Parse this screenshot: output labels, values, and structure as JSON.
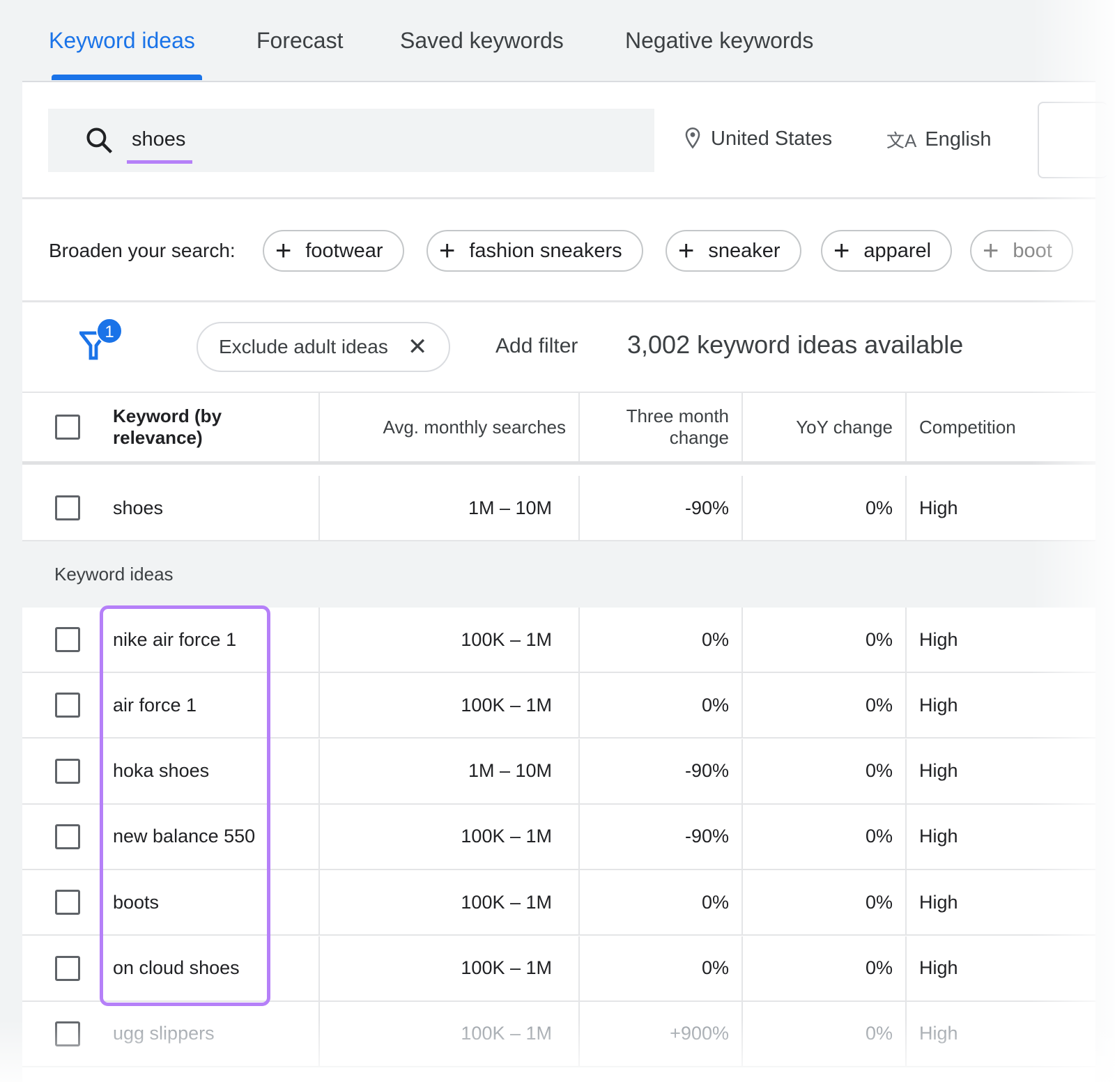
{
  "tabs": [
    "Keyword ideas",
    "Forecast",
    "Saved keywords",
    "Negative keywords"
  ],
  "search": {
    "value": "shoes",
    "location": "United States",
    "language": "English"
  },
  "broaden": {
    "label": "Broaden your search:",
    "chips": [
      "footwear",
      "fashion sneakers",
      "sneaker",
      "apparel",
      "boot"
    ]
  },
  "filter": {
    "badge": "1",
    "chip": "Exclude adult ideas",
    "add": "Add filter",
    "count": "3,002 keyword ideas available"
  },
  "table": {
    "headers": [
      "Keyword (by relevance)",
      "Avg. monthly searches",
      "Three month change",
      "YoY change",
      "Competition"
    ],
    "provided": {
      "keyword": "shoes",
      "avg": "1M – 10M",
      "three": "-90%",
      "yoy": "0%",
      "comp": "High"
    },
    "section_label": "Keyword ideas",
    "rows": [
      {
        "keyword": "nike air force 1",
        "avg": "100K – 1M",
        "three": "0%",
        "yoy": "0%",
        "comp": "High"
      },
      {
        "keyword": "air force 1",
        "avg": "100K – 1M",
        "three": "0%",
        "yoy": "0%",
        "comp": "High"
      },
      {
        "keyword": "hoka shoes",
        "avg": "1M – 10M",
        "three": "-90%",
        "yoy": "0%",
        "comp": "High"
      },
      {
        "keyword": "new balance 550",
        "avg": "100K – 1M",
        "three": "-90%",
        "yoy": "0%",
        "comp": "High"
      },
      {
        "keyword": "boots",
        "avg": "100K – 1M",
        "three": "0%",
        "yoy": "0%",
        "comp": "High"
      },
      {
        "keyword": "on cloud shoes",
        "avg": "100K – 1M",
        "three": "0%",
        "yoy": "0%",
        "comp": "High"
      },
      {
        "keyword": "ugg slippers",
        "avg": "100K – 1M",
        "three": "+900%",
        "yoy": "0%",
        "comp": "High"
      }
    ]
  },
  "colors": {
    "accent": "#1a73e8",
    "highlight": "#b580f8"
  }
}
